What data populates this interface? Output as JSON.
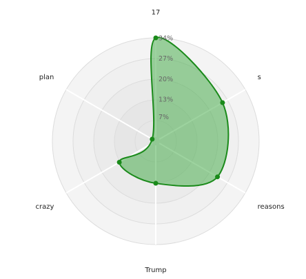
{
  "chart_data": {
    "type": "radar",
    "categories": [
      "17",
      "s",
      "reasons",
      "Trump",
      "crazy",
      "plan"
    ],
    "series": [
      {
        "values": [
          34,
          25,
          23,
          13,
          13,
          0
        ]
      }
    ],
    "rlim": [
      0,
      34
    ],
    "ticks": [
      7,
      13,
      20,
      27,
      34
    ],
    "tick_labels": [
      "7%",
      "13%",
      "20%",
      "27%",
      "34%"
    ],
    "grid": true,
    "curve": "smooth",
    "legend": "none",
    "colors": {
      "series_line": "#1a8a1a",
      "series_fill": "#4caf50",
      "point": "#1a8a1a",
      "ring_bands": [
        "#e6e6e6",
        "#ebebeb",
        "#f0f0f0",
        "#f4f4f4"
      ],
      "axis_line": "#ffffff"
    }
  }
}
